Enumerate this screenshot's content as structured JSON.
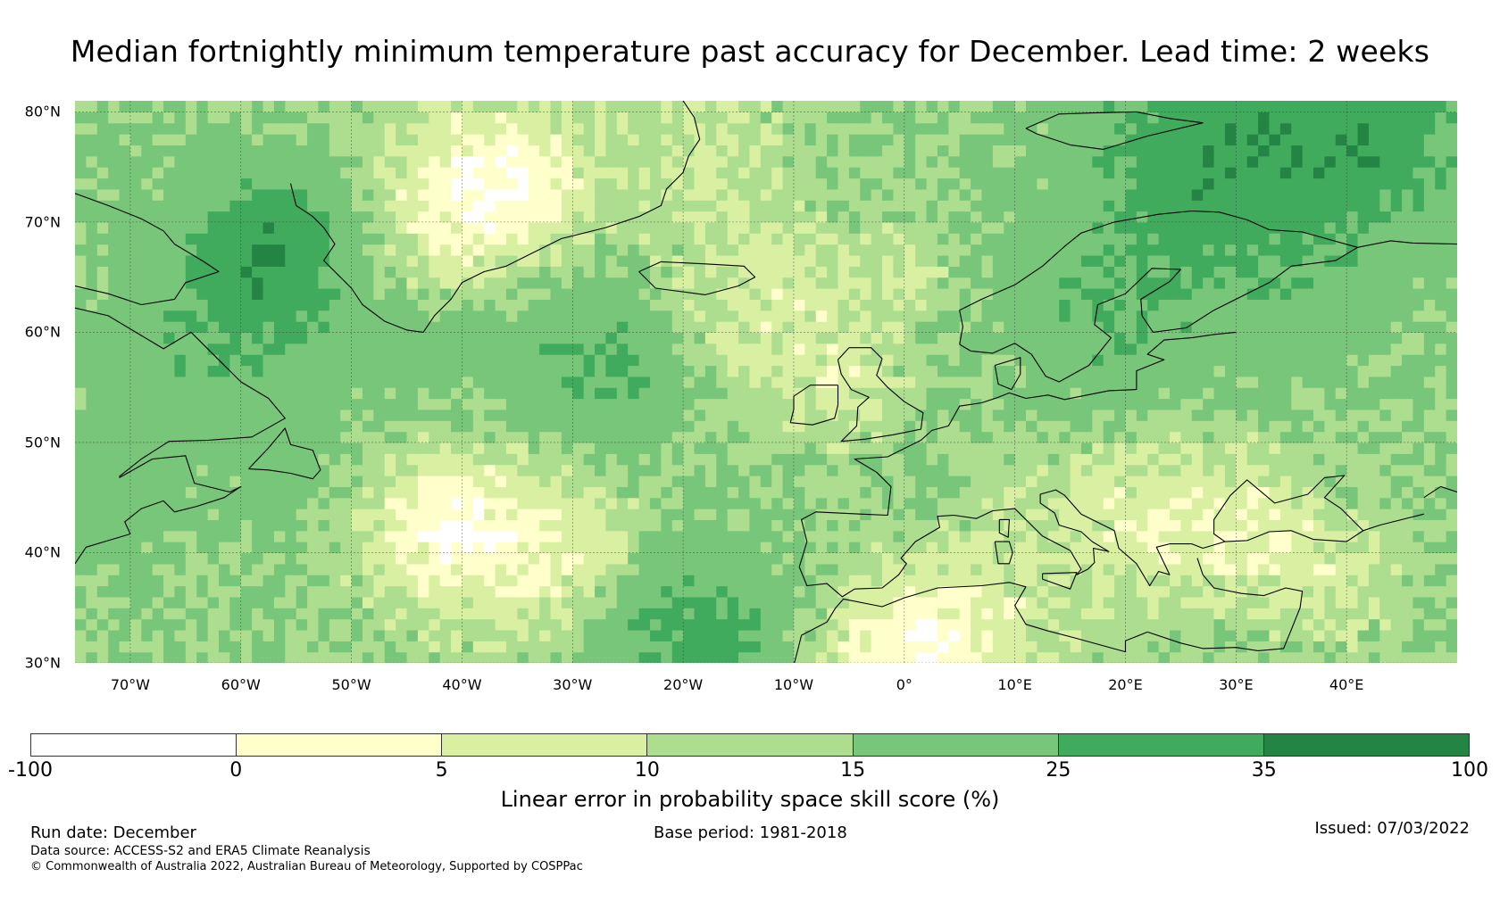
{
  "title": "Median fortnightly minimum temperature past accuracy for December. Lead time: 2 weeks",
  "map": {
    "projection": "PlateCarree",
    "lon_range": [
      -75,
      50
    ],
    "lat_range": [
      30,
      81
    ],
    "grid_resolution_deg": 1,
    "lat_labels": [
      {
        "value": 80,
        "label": "80°N"
      },
      {
        "value": 70,
        "label": "70°N"
      },
      {
        "value": 60,
        "label": "60°N"
      },
      {
        "value": 50,
        "label": "50°N"
      },
      {
        "value": 40,
        "label": "40°N"
      },
      {
        "value": 30,
        "label": "30°N"
      }
    ],
    "lon_labels": [
      {
        "value": -70,
        "label": "70°W"
      },
      {
        "value": -60,
        "label": "60°W"
      },
      {
        "value": -50,
        "label": "50°W"
      },
      {
        "value": -40,
        "label": "40°W"
      },
      {
        "value": -30,
        "label": "30°W"
      },
      {
        "value": -20,
        "label": "20°W"
      },
      {
        "value": -10,
        "label": "10°W"
      },
      {
        "value": 0,
        "label": "0°"
      },
      {
        "value": 10,
        "label": "10°E"
      },
      {
        "value": 20,
        "label": "20°E"
      },
      {
        "value": 30,
        "label": "30°E"
      },
      {
        "value": 40,
        "label": "40°E"
      }
    ]
  },
  "colorbar": {
    "label": "Linear error in probability space skill score (%)",
    "ticks": [
      "-100",
      "0",
      "5",
      "10",
      "15",
      "25",
      "35",
      "100"
    ],
    "bins": [
      {
        "from": -100,
        "to": 0,
        "color": "#ffffff"
      },
      {
        "from": 0,
        "to": 5,
        "color": "#ffffcc"
      },
      {
        "from": 5,
        "to": 10,
        "color": "#d9f0a3"
      },
      {
        "from": 10,
        "to": 15,
        "color": "#addd8e"
      },
      {
        "from": 15,
        "to": 25,
        "color": "#78c679"
      },
      {
        "from": 25,
        "to": 35,
        "color": "#41ab5d"
      },
      {
        "from": 35,
        "to": 100,
        "color": "#238443"
      }
    ]
  },
  "footer": {
    "run_date": "Run date: December",
    "base_period": "Base period: 1981-2018",
    "issued": "Issued: 07/03/2022",
    "data_source": "Data source: ACCESS-S2 and ERA5 Climate Reanalysis",
    "copyright": "© Commonwealth of Australia 2022, Australian Bureau of Meteorology, Supported by COSPPac"
  }
}
